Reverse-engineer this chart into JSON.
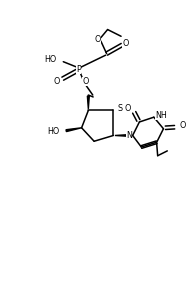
{
  "figsize": [
    1.94,
    2.96
  ],
  "dpi": 100,
  "bg_color": "white",
  "line_color": "black",
  "lw": 1.1,
  "text_color": "black",
  "font_size": 5.8,
  "xlim": [
    0,
    10
  ],
  "ylim": [
    0,
    15
  ]
}
